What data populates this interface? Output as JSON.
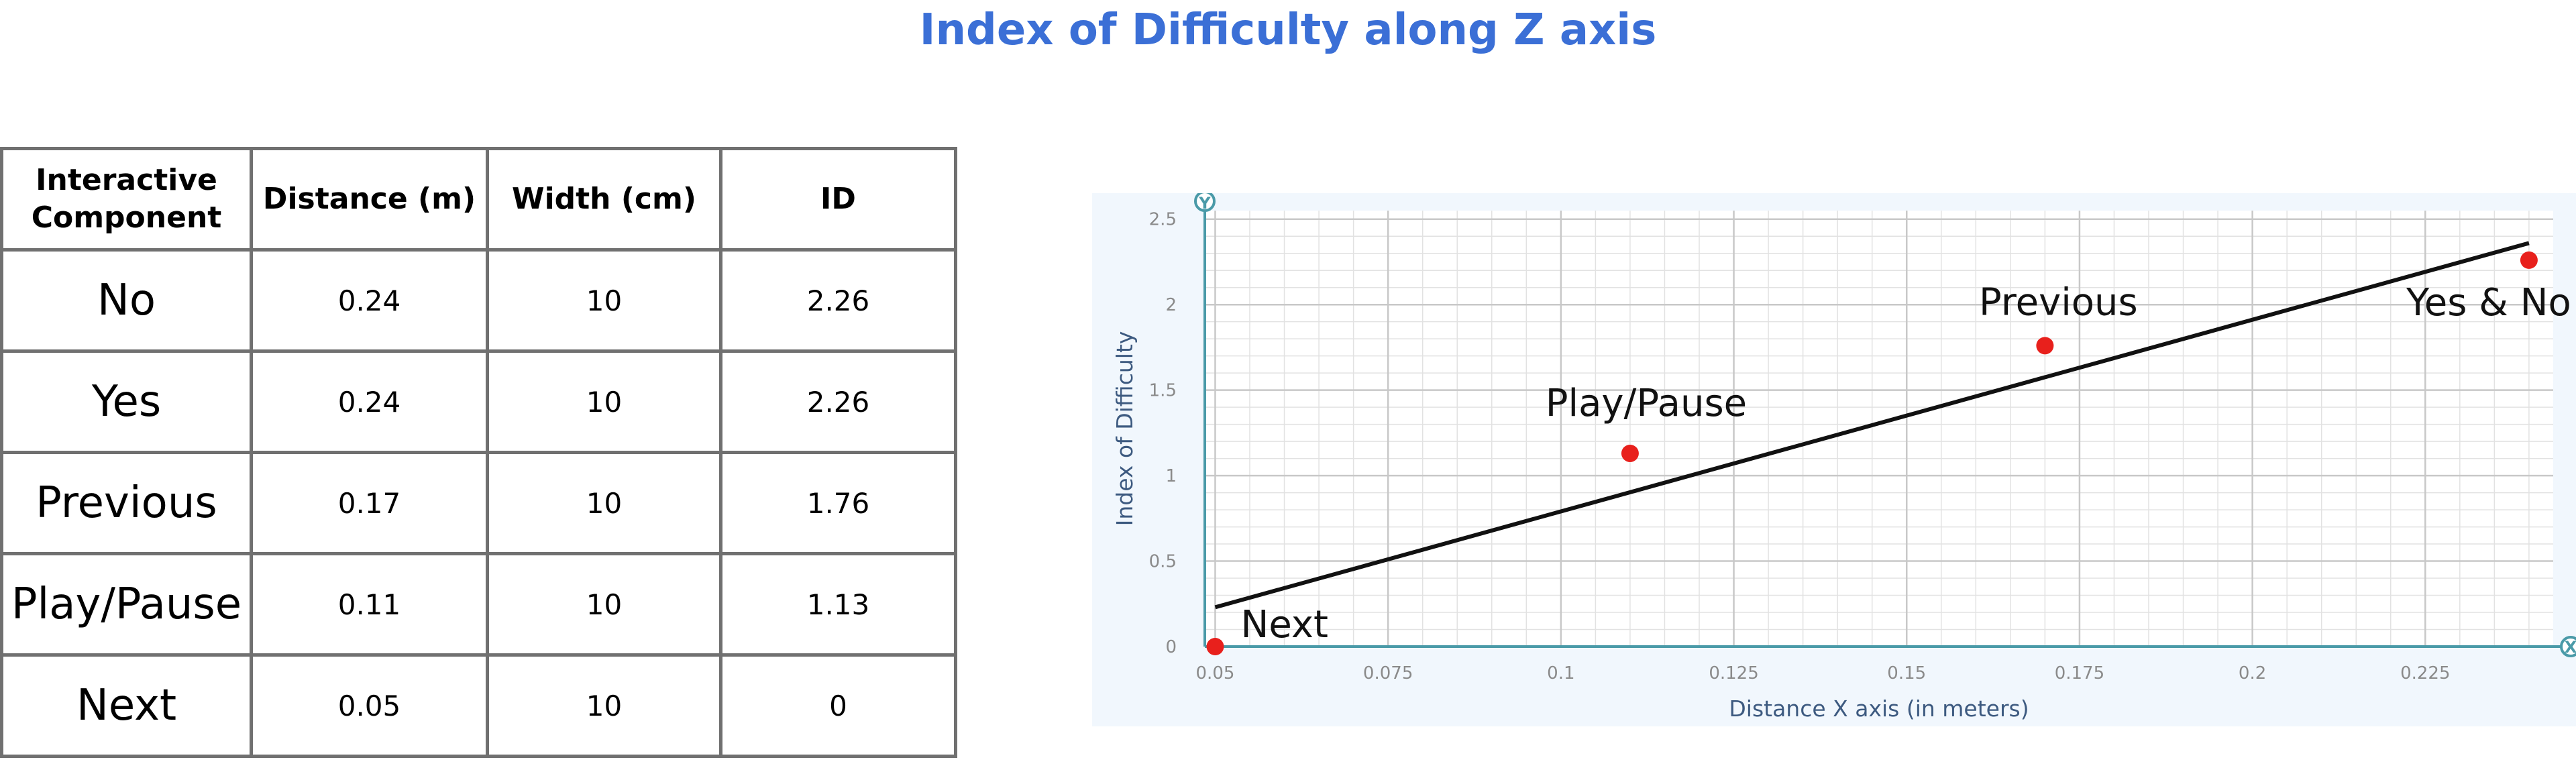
{
  "title": "Index of Difficulty along Z axis",
  "table": {
    "headers": [
      "Interactive\nComponent",
      "Distance (m)",
      "Width (cm)",
      "ID"
    ],
    "header_lines": {
      "component_line1": "Interactive",
      "component_line2": "Component",
      "distance": "Distance (m)",
      "width": "Width (cm)",
      "id": "ID"
    },
    "rows": [
      {
        "component": "No",
        "distance": "0.24",
        "width": "10",
        "id": "2.26"
      },
      {
        "component": "Yes",
        "distance": "0.24",
        "width": "10",
        "id": "2.26"
      },
      {
        "component": "Previous",
        "distance": "0.17",
        "width": "10",
        "id": "1.76"
      },
      {
        "component": "Play/Pause",
        "distance": "0.11",
        "width": "10",
        "id": "1.13"
      },
      {
        "component": "Next",
        "distance": "0.05",
        "width": "10",
        "id": "0"
      }
    ]
  },
  "chart_data": {
    "type": "scatter",
    "xlabel": "Distance X axis (in meters)",
    "ylabel": "Index of Difficulty",
    "xlim": [
      0.05,
      0.24
    ],
    "ylim": [
      0,
      2.5
    ],
    "x_ticks": [
      "0.05",
      "0.075",
      "0.1",
      "0.125",
      "0.15",
      "0.175",
      "0.2",
      "0.225"
    ],
    "x_tick_values": [
      0.05,
      0.075,
      0.1,
      0.125,
      0.15,
      0.175,
      0.2,
      0.225
    ],
    "y_ticks": [
      "0",
      "0.5",
      "1",
      "1.5",
      "2",
      "2.5"
    ],
    "y_tick_values": [
      0,
      0.5,
      1,
      1.5,
      2,
      2.5
    ],
    "grid": true,
    "points": [
      {
        "label": "Next",
        "x": 0.05,
        "y": 0
      },
      {
        "label": "Play/Pause",
        "x": 0.11,
        "y": 1.13
      },
      {
        "label": "Previous",
        "x": 0.17,
        "y": 1.76
      },
      {
        "label": "Yes & No",
        "x": 0.24,
        "y": 2.26
      }
    ],
    "trendline": {
      "x": [
        0.05,
        0.24
      ],
      "y": [
        0.23,
        2.36
      ]
    },
    "colors": {
      "points": "#e8201c",
      "trendline": "#111111",
      "axis": "#4a9aa8",
      "grid_major": "#c8c8c8",
      "grid_minor": "#e2e2e2",
      "plot_bg": "#f1f7fd",
      "tick_text": "#8a8a8a",
      "axis_label": "#3d5a80"
    },
    "axis_icons": [
      "y-axis-icon",
      "x-axis-icon"
    ]
  }
}
